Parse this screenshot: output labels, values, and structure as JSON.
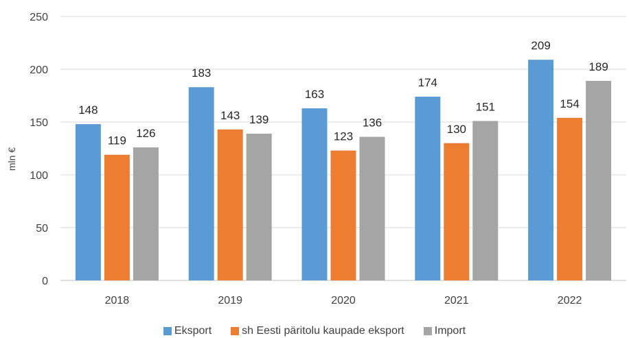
{
  "chart_data": {
    "type": "bar",
    "title": "",
    "xlabel": "",
    "ylabel": "mln €",
    "ylim": [
      0,
      250
    ],
    "yticks": [
      0,
      50,
      100,
      150,
      200,
      250
    ],
    "grid": true,
    "legend_position": "bottom",
    "categories": [
      "2018",
      "2019",
      "2020",
      "2021",
      "2022"
    ],
    "series": [
      {
        "name": "Eksport",
        "color": "#5B9BD5",
        "values": [
          148,
          183,
          163,
          174,
          209
        ]
      },
      {
        "name": "sh Eesti päritolu kaupade eksport",
        "color": "#ED7D31",
        "values": [
          119,
          143,
          123,
          130,
          154
        ]
      },
      {
        "name": "Import",
        "color": "#A5A5A5",
        "values": [
          126,
          139,
          136,
          151,
          189
        ]
      }
    ]
  }
}
